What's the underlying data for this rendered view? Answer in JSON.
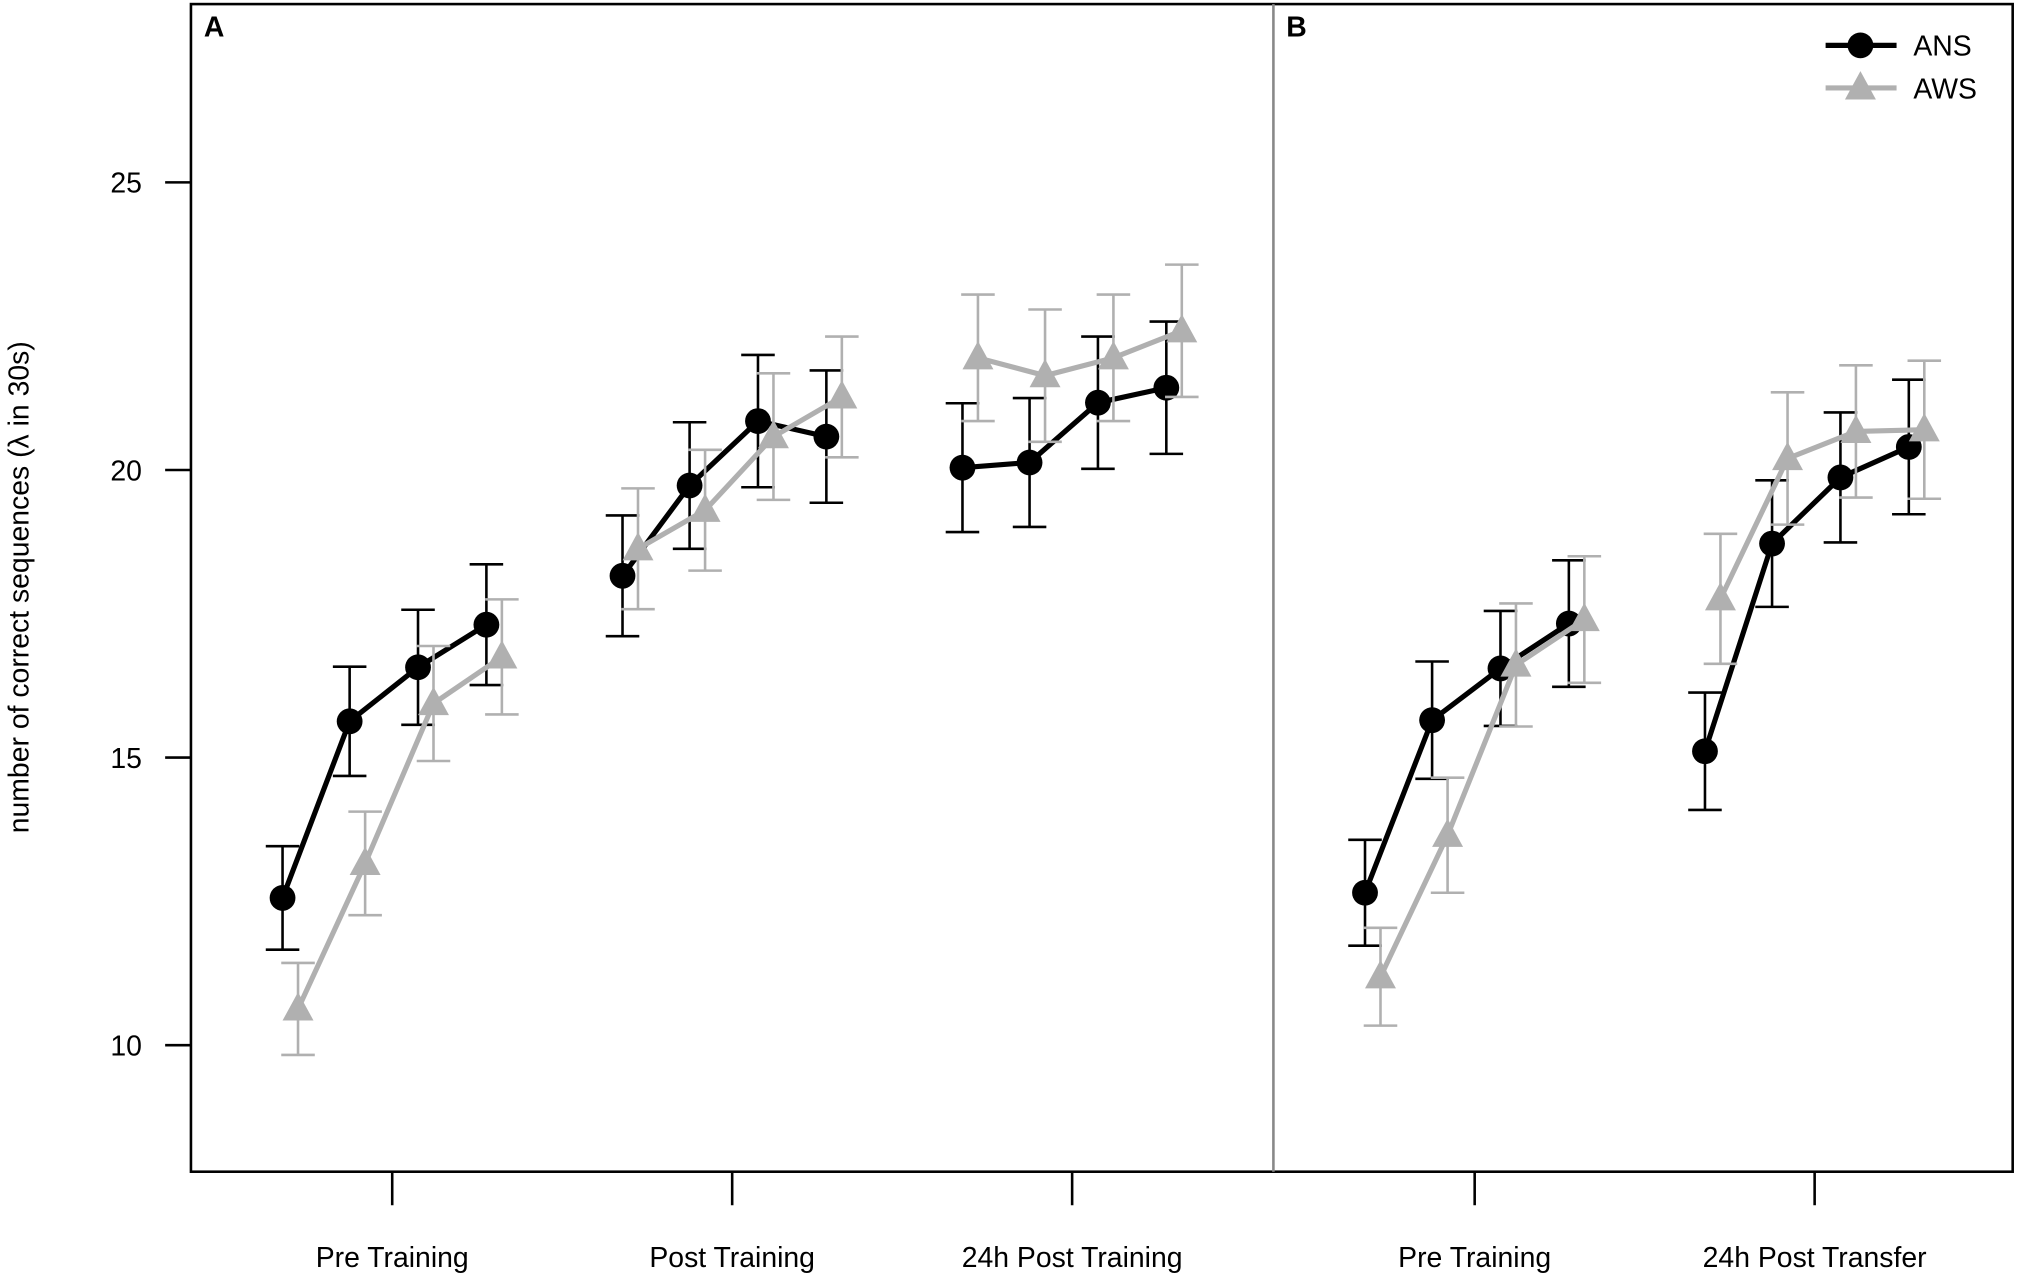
{
  "chart_data": [
    {
      "type": "line",
      "panel_label": "A",
      "y_label": "number of correct sequences (λ in 30s)",
      "categories": [
        "Pre Training",
        "Post Training",
        "24h Post Training"
      ],
      "ylim": [
        7.8,
        28.1
      ],
      "yticks": [
        10,
        15,
        20,
        25
      ],
      "series": [
        {
          "name": "ANS",
          "color": "#000000",
          "marker": "circle",
          "values": [
            [
              12.56,
              15.63,
              16.57,
              17.31
            ],
            [
              18.16,
              19.73,
              20.85,
              20.58
            ],
            [
              20.04,
              20.13,
              21.17,
              21.43
            ]
          ],
          "errors": [
            [
              0.9,
              0.95,
              1.0,
              1.05
            ],
            [
              1.05,
              1.1,
              1.15,
              1.15
            ],
            [
              1.12,
              1.12,
              1.15,
              1.15
            ]
          ]
        },
        {
          "name": "AWS",
          "color": "#b0b0b0",
          "marker": "triangle",
          "values": [
            [
              10.63,
              13.16,
              15.94,
              16.75
            ],
            [
              18.63,
              19.3,
              20.58,
              21.27
            ],
            [
              21.95,
              21.64,
              21.95,
              22.42
            ]
          ],
          "errors": [
            [
              0.8,
              0.9,
              1.0,
              1.0
            ],
            [
              1.05,
              1.05,
              1.1,
              1.05
            ],
            [
              1.1,
              1.15,
              1.1,
              1.15
            ]
          ]
        }
      ]
    },
    {
      "type": "line",
      "panel_label": "B",
      "categories": [
        "Pre Training",
        "24h Post Transfer"
      ],
      "ylim": [
        7.8,
        28.1
      ],
      "legend": "top-right",
      "series": [
        {
          "name": "ANS",
          "color": "#000000",
          "marker": "circle",
          "values": [
            [
              12.65,
              15.65,
              16.55,
              17.33
            ],
            [
              15.11,
              18.72,
              19.87,
              20.4
            ]
          ],
          "errors": [
            [
              0.92,
              1.02,
              1.0,
              1.1
            ],
            [
              1.02,
              1.1,
              1.13,
              1.17
            ]
          ]
        },
        {
          "name": "AWS",
          "color": "#b0b0b0",
          "marker": "triangle",
          "values": [
            [
              11.19,
              13.65,
              16.61,
              17.4
            ],
            [
              17.76,
              20.2,
              20.67,
              20.7
            ]
          ],
          "errors": [
            [
              0.85,
              1.0,
              1.07,
              1.1
            ],
            [
              1.13,
              1.15,
              1.15,
              1.2
            ]
          ]
        }
      ]
    }
  ]
}
